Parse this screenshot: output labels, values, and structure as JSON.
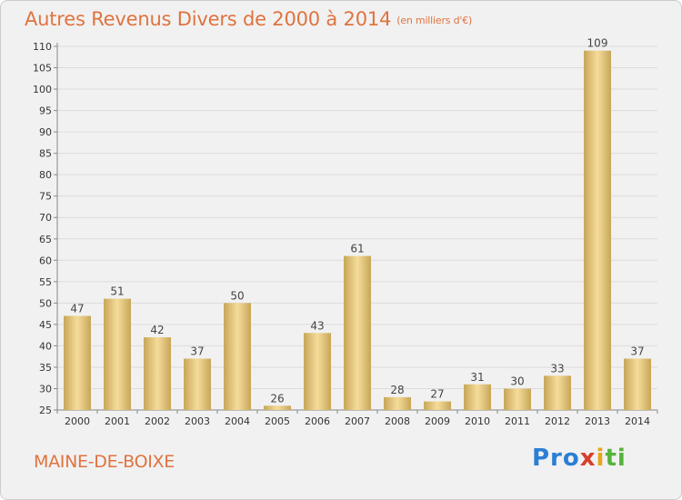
{
  "header": {
    "title": "Autres Revenus Divers de 2000 à 2014",
    "unit": "(en milliers d'€)"
  },
  "footer": {
    "commune": "MAINE-DE-BOIXE",
    "brand": {
      "p1": "Pro",
      "p2": "x",
      "p3": "i",
      "p4": "ti"
    }
  },
  "chart_data": {
    "type": "bar",
    "title": "Autres Revenus Divers de 2000 à 2014",
    "subtitle": "(en milliers d'€)",
    "categories": [
      "2000",
      "2001",
      "2002",
      "2003",
      "2004",
      "2005",
      "2006",
      "2007",
      "2008",
      "2009",
      "2010",
      "2011",
      "2012",
      "2013",
      "2014"
    ],
    "values": [
      47,
      51,
      42,
      37,
      50,
      26,
      43,
      61,
      28,
      27,
      31,
      30,
      33,
      109,
      37
    ],
    "ylim": [
      25,
      110
    ],
    "yticks": [
      25,
      30,
      35,
      40,
      45,
      50,
      55,
      60,
      65,
      70,
      75,
      80,
      85,
      90,
      95,
      100,
      105,
      110
    ],
    "grid": true,
    "data_labels": true,
    "bar_color_light": "#f6dc9a",
    "bar_color_dark": "#c7a659"
  }
}
